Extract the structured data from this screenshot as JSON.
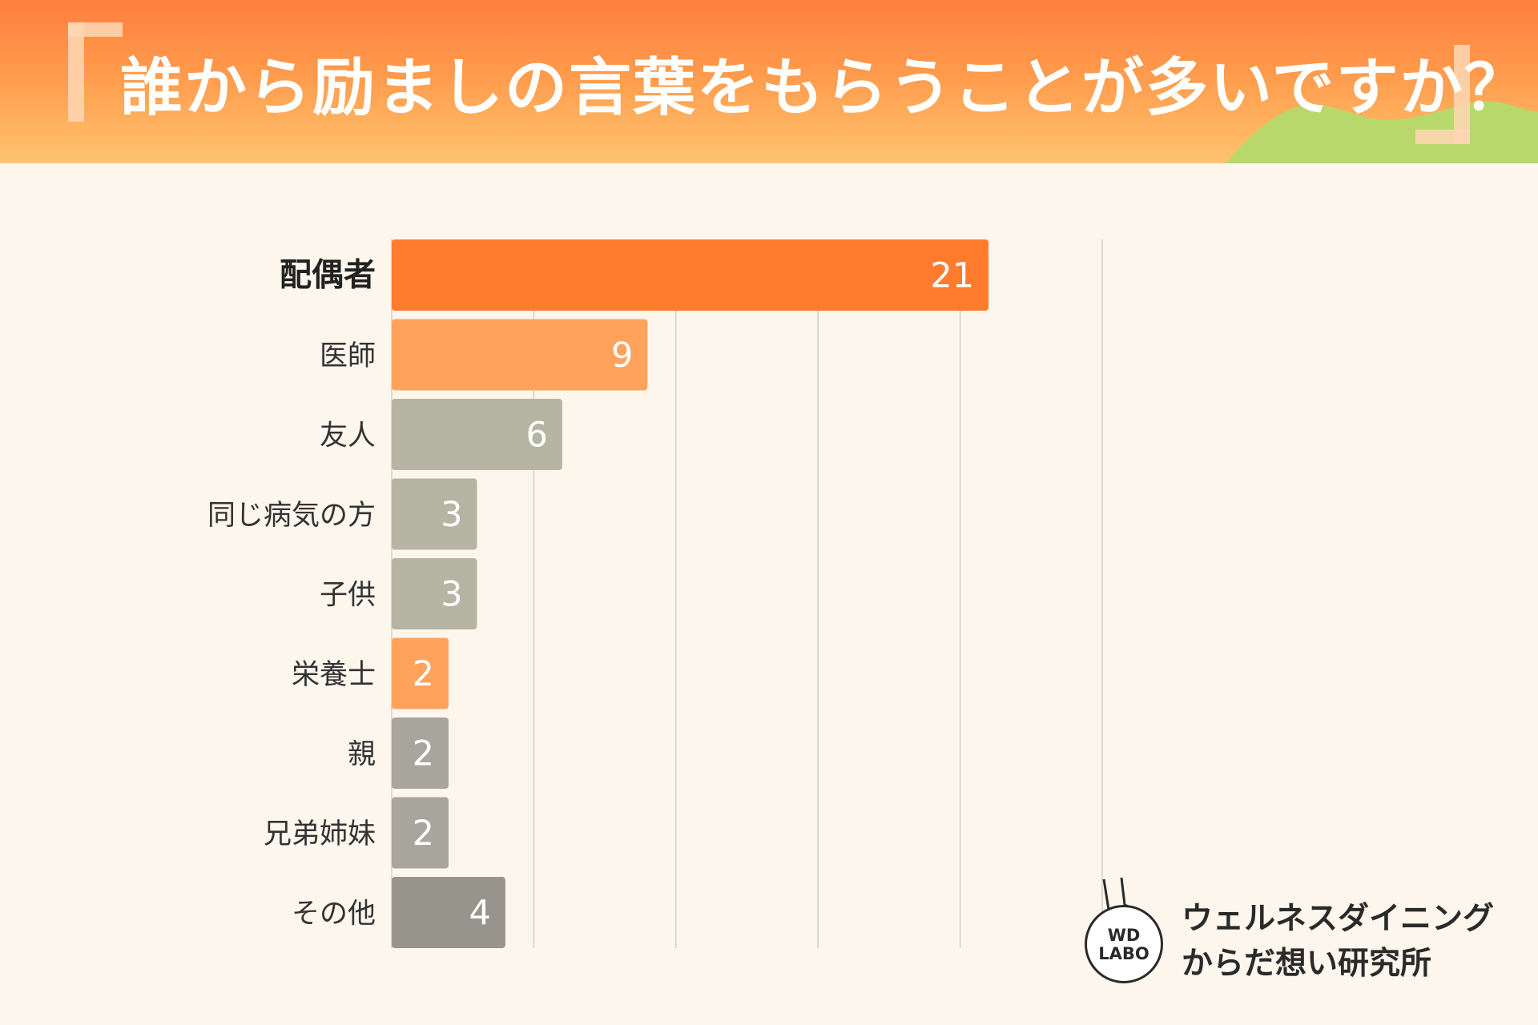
{
  "header": {
    "title": "誰から励ましの言葉をもらうことが多いですか？"
  },
  "chart_data": {
    "type": "bar",
    "orientation": "horizontal",
    "title": "誰から励ましの言葉をもらうことが多いですか？",
    "xlabel": "",
    "ylabel": "",
    "xlim": [
      0,
      25
    ],
    "grid": true,
    "categories": [
      "配偶者",
      "医師",
      "友人",
      "同じ病気の方",
      "子供",
      "栄養士",
      "親",
      "兄弟姉妹",
      "その他"
    ],
    "values": [
      21,
      9,
      6,
      3,
      3,
      2,
      2,
      2,
      4
    ],
    "bar_colors": [
      "#ff7c2e",
      "#ffa35c",
      "#b6b5a4",
      "#b6b5a4",
      "#b6b5a4",
      "#ffa35c",
      "#a8a69c",
      "#a8a69c",
      "#97958b"
    ]
  },
  "logo": {
    "mark_line1": "WD",
    "mark_line2": "LABO",
    "name_line1": "ウェルネスダイニング",
    "name_line2": "からだ想い研究所"
  },
  "colors": {
    "background": "#fdf6ec",
    "header_top": "#ff7f3f",
    "header_bottom": "#ffc46e",
    "hill": "#b9d86c",
    "grid": "#cfcfcf"
  }
}
